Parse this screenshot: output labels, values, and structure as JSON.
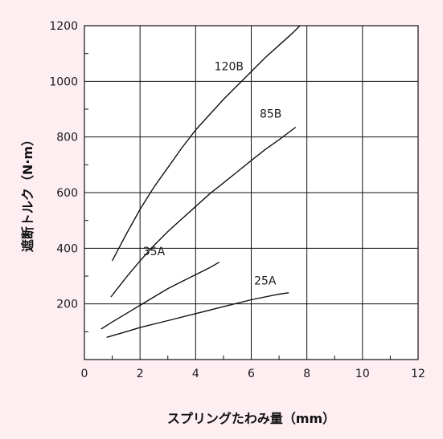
{
  "chart_data": {
    "type": "line",
    "title": "",
    "xlabel": "スプリングたわみ量（mm）",
    "ylabel": "遮断トルク（N·m）",
    "xlim": [
      0,
      12
    ],
    "ylim": [
      0,
      1200
    ],
    "xticks": [
      "0",
      "2",
      "4",
      "6",
      "8",
      "10",
      "12"
    ],
    "yticks": [
      "200",
      "400",
      "600",
      "800",
      "1000",
      "1200"
    ],
    "grid": true,
    "minor_ticks": true,
    "colors": {
      "background": "#fdeef2",
      "plot": "#ffffff",
      "line": "#111111",
      "grid": "#111111"
    },
    "series": [
      {
        "name": "120B",
        "points": [
          [
            1.0,
            355
          ],
          [
            1.5,
            450
          ],
          [
            2.0,
            540
          ],
          [
            2.5,
            620
          ],
          [
            3.0,
            690
          ],
          [
            3.5,
            760
          ],
          [
            4.0,
            825
          ],
          [
            4.5,
            880
          ],
          [
            5.0,
            935
          ],
          [
            5.5,
            985
          ],
          [
            6.0,
            1035
          ],
          [
            6.5,
            1085
          ],
          [
            7.0,
            1130
          ],
          [
            7.5,
            1175
          ],
          [
            7.75,
            1200
          ]
        ]
      },
      {
        "name": "85B",
        "points": [
          [
            0.95,
            225
          ],
          [
            1.5,
            295
          ],
          [
            2.0,
            355
          ],
          [
            2.5,
            410
          ],
          [
            3.0,
            460
          ],
          [
            3.5,
            505
          ],
          [
            4.0,
            550
          ],
          [
            4.5,
            595
          ],
          [
            5.0,
            635
          ],
          [
            5.5,
            675
          ],
          [
            6.0,
            715
          ],
          [
            6.5,
            755
          ],
          [
            7.0,
            790
          ],
          [
            7.6,
            835
          ]
        ]
      },
      {
        "name": "35A",
        "points": [
          [
            0.6,
            110
          ],
          [
            1.0,
            135
          ],
          [
            1.5,
            165
          ],
          [
            2.0,
            195
          ],
          [
            2.5,
            225
          ],
          [
            3.0,
            255
          ],
          [
            3.5,
            280
          ],
          [
            4.0,
            305
          ],
          [
            4.5,
            330
          ],
          [
            4.85,
            350
          ]
        ]
      },
      {
        "name": "25A",
        "points": [
          [
            0.8,
            80
          ],
          [
            1.5,
            100
          ],
          [
            2.0,
            115
          ],
          [
            3.0,
            140
          ],
          [
            4.0,
            165
          ],
          [
            5.0,
            190
          ],
          [
            6.0,
            215
          ],
          [
            7.0,
            235
          ],
          [
            7.35,
            240
          ]
        ]
      }
    ],
    "series_labels": [
      {
        "text": "120B",
        "x": 5.2,
        "y": 1040
      },
      {
        "text": "85B",
        "x": 6.7,
        "y": 870
      },
      {
        "text": "35A",
        "x": 2.5,
        "y": 375
      },
      {
        "text": "25A",
        "x": 6.5,
        "y": 270
      }
    ]
  }
}
